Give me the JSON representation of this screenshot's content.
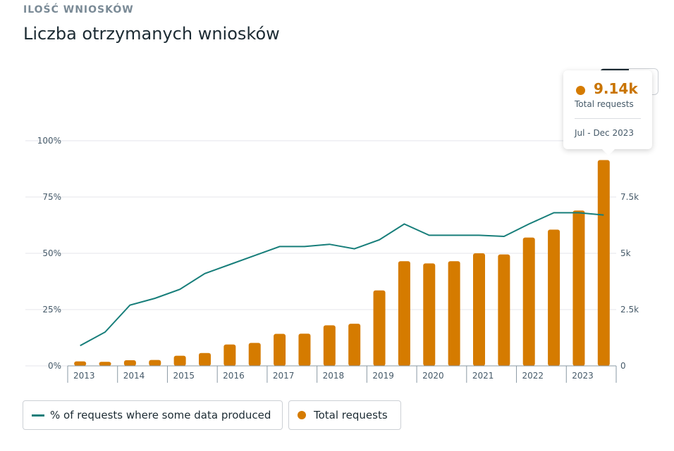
{
  "header": {
    "section_label": "ILOŚĆ WNIOSKÓW",
    "title": "Liczba otrzymanych wniosków"
  },
  "tooltip": {
    "value": "9.14k",
    "label": "Total requests",
    "period": "Jul - Dec 2023"
  },
  "legend": {
    "line_label": "% of requests where some data produced",
    "bar_label": "Total requests"
  },
  "colors": {
    "bar": "#d57b00",
    "line": "#177e7a",
    "grid": "#e4e6eb",
    "axis_text": "#465a69"
  },
  "chart_data": {
    "type": "bar",
    "title": "Liczba otrzymanych wniosków",
    "xlabel": "",
    "ylabel": "",
    "years": [
      "2013",
      "2014",
      "2015",
      "2016",
      "2017",
      "2018",
      "2019",
      "2020",
      "2021",
      "2022",
      "2023"
    ],
    "periods_per_year": 2,
    "categories": [
      "2013 H1",
      "2013 H2",
      "2014 H1",
      "2014 H2",
      "2015 H1",
      "2015 H2",
      "2016 H1",
      "2016 H2",
      "2017 H1",
      "2017 H2",
      "2018 H1",
      "2018 H2",
      "2019 H1",
      "2019 H2",
      "2020 H1",
      "2020 H2",
      "2021 H1",
      "2021 H2",
      "2022 H1",
      "2022 H2",
      "2023 H1",
      "2023 H2"
    ],
    "left_axis": {
      "ticks": [
        "0%",
        "25%",
        "50%",
        "75%",
        "100%"
      ],
      "ylim": [
        0,
        100
      ]
    },
    "right_axis": {
      "ticks": [
        "0",
        "2.5k",
        "5k",
        "7.5k"
      ],
      "ylim": [
        0,
        10000
      ]
    },
    "series": [
      {
        "name": "Total requests",
        "kind": "bar",
        "axis": "right",
        "values": [
          200,
          180,
          250,
          260,
          450,
          570,
          950,
          1020,
          1420,
          1430,
          1800,
          1870,
          3350,
          4650,
          4550,
          4650,
          5000,
          4950,
          5700,
          6050,
          6900,
          9140
        ]
      },
      {
        "name": "% of requests where some data produced",
        "kind": "line",
        "axis": "left",
        "values": [
          9,
          15,
          27,
          30,
          34,
          41,
          45,
          49,
          53,
          53,
          54,
          52,
          56,
          63,
          58,
          58,
          58,
          57.5,
          63,
          68,
          68,
          67
        ]
      }
    ],
    "highlight": {
      "category": "2023 H2",
      "value": 9140,
      "label": "9.14k"
    },
    "grid": true,
    "legend_position": "bottom-left"
  }
}
